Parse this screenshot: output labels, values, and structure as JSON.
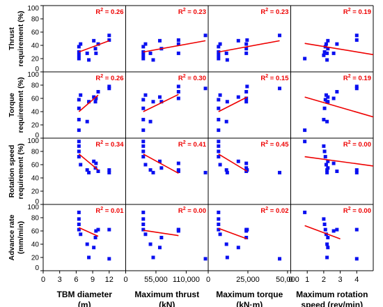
{
  "chart_data": {
    "type": "scatter",
    "marker_color": "#0a10f0",
    "fit_color": "#ee0000",
    "axis_color": "#000000",
    "grid": false,
    "y_range": [
      0,
      100
    ],
    "y_ticks": [
      "0",
      "20",
      "40",
      "60",
      "80",
      "100"
    ],
    "columns": [
      {
        "xlabel_line1": "TBM diameter",
        "xlabel_line2": "(m)",
        "xlim": [
          0,
          15
        ],
        "ticks": [
          {
            "value": 0,
            "label": "0"
          },
          {
            "value": 3,
            "label": "3"
          },
          {
            "value": 6,
            "label": "6"
          },
          {
            "value": 9,
            "label": "9"
          },
          {
            "value": 12,
            "label": "12"
          }
        ],
        "samples": [
          6.5,
          6.5,
          6.5,
          6.5,
          6.8,
          8,
          8.3,
          9.2,
          9.5,
          9.6,
          10,
          12,
          12
        ]
      },
      {
        "xlabel_line1": "Maximum thrust",
        "xlabel_line2": "(kN)",
        "xlim": [
          0,
          150000
        ],
        "ticks": [
          {
            "value": 0,
            "label": "0"
          },
          {
            "value": 55000,
            "label": "55,000"
          },
          {
            "value": 110000,
            "label": "110,000"
          }
        ],
        "samples": [
          32000,
          32000,
          32000,
          32000,
          36000,
          45000,
          50000,
          62000,
          65000,
          96000,
          96000,
          96000,
          145000
        ]
      },
      {
        "xlabel_line1": "Maximum torque",
        "xlabel_line2": "(kN·m)",
        "xlim": [
          0,
          52000
        ],
        "ticks": [
          {
            "value": 0,
            "label": "0"
          },
          {
            "value": 25000,
            "label": "25,000"
          },
          {
            "value": 50000,
            "label": "50,000"
          }
        ],
        "samples": [
          6500,
          6500,
          6500,
          6500,
          7500,
          11500,
          12000,
          19000,
          24000,
          24000,
          24000,
          24500,
          45000
        ]
      },
      {
        "xlabel_line1": "Maximum rotation",
        "xlabel_line2": "speed (rev/min)",
        "xlim": [
          0,
          5
        ],
        "ticks": [
          {
            "value": 0,
            "label": "0"
          },
          {
            "value": 1,
            "label": "1"
          },
          {
            "value": 2,
            "label": "2"
          },
          {
            "value": 3,
            "label": "3"
          },
          {
            "value": 4,
            "label": "4"
          }
        ],
        "samples": [
          0.85,
          2.0,
          2.05,
          2.1,
          2.15,
          2.2,
          2.2,
          2.25,
          2.25,
          2.6,
          2.8,
          4.0,
          4.0
        ]
      }
    ],
    "rows": [
      {
        "ylabel_line1": "Thrust",
        "ylabel_line2": "requirement (%)",
        "yvalues": [
          20,
          25,
          30,
          38,
          42,
          28,
          18,
          47,
          35,
          28,
          42,
          48,
          55
        ]
      },
      {
        "ylabel_line1": "Torque",
        "ylabel_line2": "requirement (%)",
        "yvalues": [
          12,
          28,
          45,
          58,
          65,
          25,
          55,
          62,
          55,
          60,
          70,
          78,
          75
        ]
      },
      {
        "ylabel_line1": "Rotation speed",
        "ylabel_line2": "requirement (%)",
        "yvalues": [
          95,
          88,
          80,
          72,
          60,
          52,
          48,
          65,
          55,
          62,
          50,
          52,
          48
        ]
      },
      {
        "ylabel_line1": "Advance rate",
        "ylabel_line2": "(mm/min)",
        "yvalues": [
          88,
          78,
          70,
          62,
          55,
          40,
          20,
          35,
          50,
          60,
          62,
          62,
          18
        ]
      }
    ],
    "panels": [
      [
        {
          "r2": "0.26",
          "fit": [
            [
              6.5,
              30
            ],
            [
              12,
              47
            ]
          ]
        },
        {
          "r2": "0.23",
          "fit": [
            [
              32000,
              30
            ],
            [
              145000,
              47
            ]
          ]
        },
        {
          "r2": "0.23",
          "fit": [
            [
              6500,
              30
            ],
            [
              45000,
              47
            ]
          ]
        },
        {
          "r2": "0.19",
          "fit": [
            [
              0.85,
              43
            ],
            [
              5,
              26
            ]
          ]
        }
      ],
      [
        {
          "r2": "0.26",
          "fit": [
            [
              6.5,
              40
            ],
            [
              10,
              65
            ]
          ]
        },
        {
          "r2": "0.30",
          "fit": [
            [
              32000,
              40
            ],
            [
              96000,
              66
            ]
          ]
        },
        {
          "r2": "0.15",
          "fit": [
            [
              6500,
              40
            ],
            [
              24500,
              62
            ]
          ]
        },
        {
          "r2": "0.19",
          "fit": [
            [
              0.85,
              62
            ],
            [
              5,
              32
            ]
          ]
        }
      ],
      [
        {
          "r2": "0.34",
          "fit": [
            [
              6.5,
              76
            ],
            [
              10,
              52
            ]
          ]
        },
        {
          "r2": "0.41",
          "fit": [
            [
              32000,
              76
            ],
            [
              96000,
              47
            ]
          ]
        },
        {
          "r2": "0.45",
          "fit": [
            [
              6500,
              76
            ],
            [
              24500,
              50
            ]
          ]
        },
        {
          "r2": "0.00",
          "fit": [
            [
              0.85,
              72
            ],
            [
              5,
              58
            ]
          ]
        }
      ],
      [
        {
          "r2": "0.01",
          "fit": [
            [
              6.5,
              65
            ],
            [
              10,
              52
            ]
          ]
        },
        {
          "r2": "0.00",
          "fit": [
            [
              32000,
              61
            ],
            [
              96000,
              53
            ]
          ]
        },
        {
          "r2": "0.02",
          "fit": [
            [
              6500,
              64
            ],
            [
              24500,
              48
            ]
          ]
        },
        {
          "r2": "0.00",
          "fit": [
            [
              0.85,
              68
            ],
            [
              3,
              48
            ]
          ]
        }
      ]
    ]
  }
}
